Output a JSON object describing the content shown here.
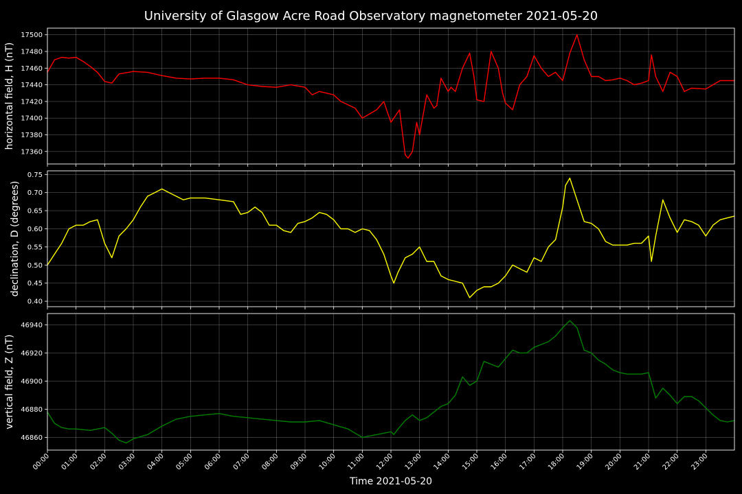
{
  "figure": {
    "title": "University of Glasgow Acre Road Observatory magnetometer 2021-05-20",
    "background": "#000000",
    "grid_color": "#808080"
  },
  "chart_data": [
    {
      "type": "line",
      "ylabel": "horizontal field, H (nT)",
      "ylim": [
        17345,
        17508
      ],
      "yticks": [
        17360,
        17380,
        17400,
        17420,
        17440,
        17460,
        17480,
        17500
      ],
      "xlim": [
        0,
        24
      ],
      "grid": true,
      "series": [
        {
          "color": "#ff0000",
          "x": [
            0,
            0.25,
            0.5,
            0.75,
            1,
            1.25,
            1.5,
            1.75,
            2,
            2.25,
            2.5,
            3,
            3.5,
            4,
            4.5,
            5,
            5.5,
            6,
            6.25,
            6.5,
            7,
            7.5,
            8,
            8.5,
            9,
            9.25,
            9.5,
            10,
            10.25,
            10.5,
            10.75,
            11,
            11.25,
            11.5,
            11.75,
            12,
            12.1,
            12.3,
            12.5,
            12.6,
            12.75,
            12.9,
            13,
            13.25,
            13.5,
            13.6,
            13.75,
            14,
            14.1,
            14.25,
            14.5,
            14.75,
            14.9,
            15,
            15.25,
            15.5,
            15.75,
            15.9,
            16,
            16.25,
            16.5,
            16.75,
            17,
            17.25,
            17.5,
            17.75,
            18,
            18.25,
            18.5,
            18.75,
            19,
            19.25,
            19.5,
            19.75,
            20,
            20.25,
            20.5,
            20.75,
            21,
            21.1,
            21.25,
            21.5,
            21.75,
            22,
            22.25,
            22.5,
            23,
            23.5,
            24
          ],
          "y": [
            17455,
            17470,
            17473,
            17472,
            17473,
            17468,
            17462,
            17455,
            17444,
            17442,
            17453,
            17456,
            17455,
            17451,
            17448,
            17447,
            17448,
            17448,
            17447,
            17446,
            17440,
            17438,
            17437,
            17440,
            17437,
            17428,
            17432,
            17428,
            17420,
            17416,
            17412,
            17400,
            17405,
            17410,
            17420,
            17395,
            17400,
            17410,
            17356,
            17352,
            17360,
            17395,
            17380,
            17428,
            17412,
            17415,
            17448,
            17432,
            17437,
            17432,
            17460,
            17478,
            17450,
            17422,
            17420,
            17480,
            17460,
            17430,
            17418,
            17410,
            17440,
            17450,
            17475,
            17460,
            17450,
            17455,
            17445,
            17478,
            17500,
            17470,
            17450,
            17450,
            17445,
            17446,
            17448,
            17445,
            17440,
            17442,
            17445,
            17476,
            17450,
            17432,
            17455,
            17450,
            17432,
            17436,
            17435,
            17445,
            17445
          ]
        }
      ]
    },
    {
      "type": "line",
      "ylabel": "declination, D (degrees)",
      "ylim": [
        0.385,
        0.76
      ],
      "yticks": [
        0.4,
        0.45,
        0.5,
        0.55,
        0.6,
        0.65,
        0.7,
        0.75
      ],
      "xlim": [
        0,
        24
      ],
      "grid": true,
      "series": [
        {
          "color": "#ffff00",
          "x": [
            0,
            0.25,
            0.5,
            0.75,
            1,
            1.25,
            1.5,
            1.75,
            2,
            2.25,
            2.5,
            2.75,
            3,
            3.25,
            3.5,
            3.75,
            4,
            4.25,
            4.5,
            4.75,
            5,
            5.5,
            6,
            6.5,
            6.75,
            7,
            7.25,
            7.5,
            7.75,
            8,
            8.25,
            8.5,
            8.75,
            9,
            9.25,
            9.5,
            9.75,
            10,
            10.25,
            10.5,
            10.75,
            11,
            11.25,
            11.5,
            11.75,
            12,
            12.1,
            12.25,
            12.5,
            12.75,
            13,
            13.25,
            13.5,
            13.75,
            14,
            14.25,
            14.5,
            14.75,
            15,
            15.25,
            15.5,
            15.75,
            16,
            16.25,
            16.5,
            16.75,
            17,
            17.25,
            17.5,
            17.75,
            18,
            18.1,
            18.25,
            18.5,
            18.75,
            19,
            19.25,
            19.5,
            19.75,
            20,
            20.25,
            20.5,
            20.75,
            21,
            21.1,
            21.25,
            21.5,
            21.75,
            22,
            22.25,
            22.5,
            22.75,
            23,
            23.25,
            23.5,
            23.75,
            24
          ],
          "y": [
            0.5,
            0.53,
            0.56,
            0.6,
            0.61,
            0.61,
            0.62,
            0.625,
            0.56,
            0.52,
            0.58,
            0.6,
            0.625,
            0.66,
            0.69,
            0.7,
            0.71,
            0.7,
            0.69,
            0.68,
            0.685,
            0.685,
            0.68,
            0.675,
            0.64,
            0.645,
            0.66,
            0.645,
            0.61,
            0.61,
            0.595,
            0.59,
            0.615,
            0.62,
            0.63,
            0.645,
            0.64,
            0.625,
            0.6,
            0.6,
            0.59,
            0.6,
            0.595,
            0.57,
            0.53,
            0.47,
            0.45,
            0.48,
            0.52,
            0.53,
            0.55,
            0.51,
            0.51,
            0.47,
            0.46,
            0.455,
            0.45,
            0.41,
            0.43,
            0.44,
            0.44,
            0.45,
            0.47,
            0.5,
            0.49,
            0.48,
            0.52,
            0.51,
            0.55,
            0.57,
            0.66,
            0.72,
            0.74,
            0.68,
            0.62,
            0.615,
            0.6,
            0.565,
            0.555,
            0.555,
            0.555,
            0.56,
            0.56,
            0.58,
            0.51,
            0.58,
            0.68,
            0.63,
            0.59,
            0.625,
            0.62,
            0.61,
            0.58,
            0.61,
            0.625,
            0.63,
            0.635
          ]
        }
      ]
    },
    {
      "type": "line",
      "ylabel": "vertical field, Z (nT)",
      "xlabel": "Time 2021-05-20",
      "ylim": [
        46851,
        46948
      ],
      "yticks": [
        46860,
        46880,
        46900,
        46920,
        46940
      ],
      "xlim": [
        0,
        24
      ],
      "xticks": [
        "00:00",
        "01:00",
        "02:00",
        "03:00",
        "04:00",
        "05:00",
        "06:00",
        "07:00",
        "08:00",
        "09:00",
        "10:00",
        "11:00",
        "12:00",
        "13:00",
        "14:00",
        "15:00",
        "16:00",
        "17:00",
        "18:00",
        "19:00",
        "20:00",
        "21:00",
        "22:00",
        "23:00"
      ],
      "grid": true,
      "series": [
        {
          "color": "#008000",
          "x": [
            0,
            0.25,
            0.5,
            0.75,
            1,
            1.5,
            2,
            2.25,
            2.5,
            2.75,
            3,
            3.5,
            4,
            4.5,
            5,
            5.5,
            6,
            6.5,
            7,
            7.5,
            8,
            8.5,
            9,
            9.5,
            10,
            10.5,
            11,
            11.5,
            12,
            12.1,
            12.25,
            12.5,
            12.75,
            13,
            13.25,
            13.5,
            13.75,
            14,
            14.25,
            14.5,
            14.75,
            15,
            15.25,
            15.5,
            15.75,
            16,
            16.25,
            16.5,
            16.75,
            17,
            17.25,
            17.5,
            17.75,
            18,
            18.25,
            18.5,
            18.75,
            19,
            19.25,
            19.5,
            19.75,
            20,
            20.25,
            20.5,
            20.75,
            21,
            21.25,
            21.5,
            21.75,
            22,
            22.25,
            22.5,
            22.75,
            23,
            23.25,
            23.5,
            23.75,
            24
          ],
          "y": [
            46878,
            46870,
            46867,
            46866,
            46866,
            46865,
            46867,
            46863,
            46858,
            46856,
            46859,
            46862,
            46868,
            46873,
            46875,
            46876,
            46877,
            46875,
            46874,
            46873,
            46872,
            46871,
            46871,
            46872,
            46869,
            46866,
            46860,
            46862,
            46864,
            46862,
            46866,
            46872,
            46876,
            46872,
            46874,
            46878,
            46882,
            46884,
            46890,
            46903,
            46897,
            46900,
            46914,
            46912,
            46910,
            46916,
            46922,
            46920,
            46920,
            46924,
            46926,
            46928,
            46932,
            46938,
            46943,
            46938,
            46922,
            46920,
            46915,
            46912,
            46908,
            46906,
            46905,
            46905,
            46905,
            46906,
            46888,
            46895,
            46890,
            46884,
            46889,
            46889,
            46886,
            46881,
            46876,
            46872,
            46871,
            46872
          ]
        }
      ]
    }
  ]
}
